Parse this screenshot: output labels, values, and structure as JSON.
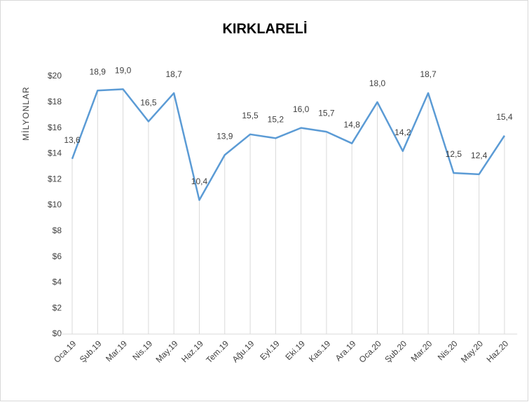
{
  "chart_data": {
    "type": "line",
    "title": "KIRKLARELİ",
    "y_label": "MİLYONLAR",
    "categories": [
      "Oca.19",
      "Şub.19",
      "Mar.19",
      "Nis.19",
      "May.19",
      "Haz.19",
      "Tem.19",
      "Ağu.19",
      "Eyl.19",
      "Eki.19",
      "Kas.19",
      "Ara.19",
      "Oca.20",
      "Şub.20",
      "Mar.20",
      "Nis.20",
      "May.20",
      "Haz.20"
    ],
    "values": [
      13.6,
      18.9,
      19.0,
      16.5,
      18.7,
      10.4,
      13.9,
      15.5,
      15.2,
      16.0,
      15.7,
      14.8,
      18.0,
      14.2,
      18.7,
      12.5,
      12.4,
      15.4
    ],
    "value_labels": [
      "13,6",
      "18,9",
      "19,0",
      "16,5",
      "18,7",
      "10,4",
      "13,9",
      "15,5",
      "15,2",
      "16,0",
      "15,7",
      "14,8",
      "18,0",
      "14,2",
      "18,7",
      "12,5",
      "12,4",
      "15,4"
    ],
    "color": "#5b9bd5",
    "ylim": [
      0,
      20
    ],
    "yticks": [
      {
        "value": 0,
        "label": "$0"
      },
      {
        "value": 2,
        "label": "$2"
      },
      {
        "value": 4,
        "label": "$4"
      },
      {
        "value": 6,
        "label": "$6"
      },
      {
        "value": 8,
        "label": "$8"
      },
      {
        "value": 10,
        "label": "$10"
      },
      {
        "value": 12,
        "label": "$12"
      },
      {
        "value": 14,
        "label": "$14"
      },
      {
        "value": 16,
        "label": "$16"
      },
      {
        "value": 18,
        "label": "$18"
      },
      {
        "value": 20,
        "label": "$20"
      }
    ],
    "drop_lines": true
  }
}
